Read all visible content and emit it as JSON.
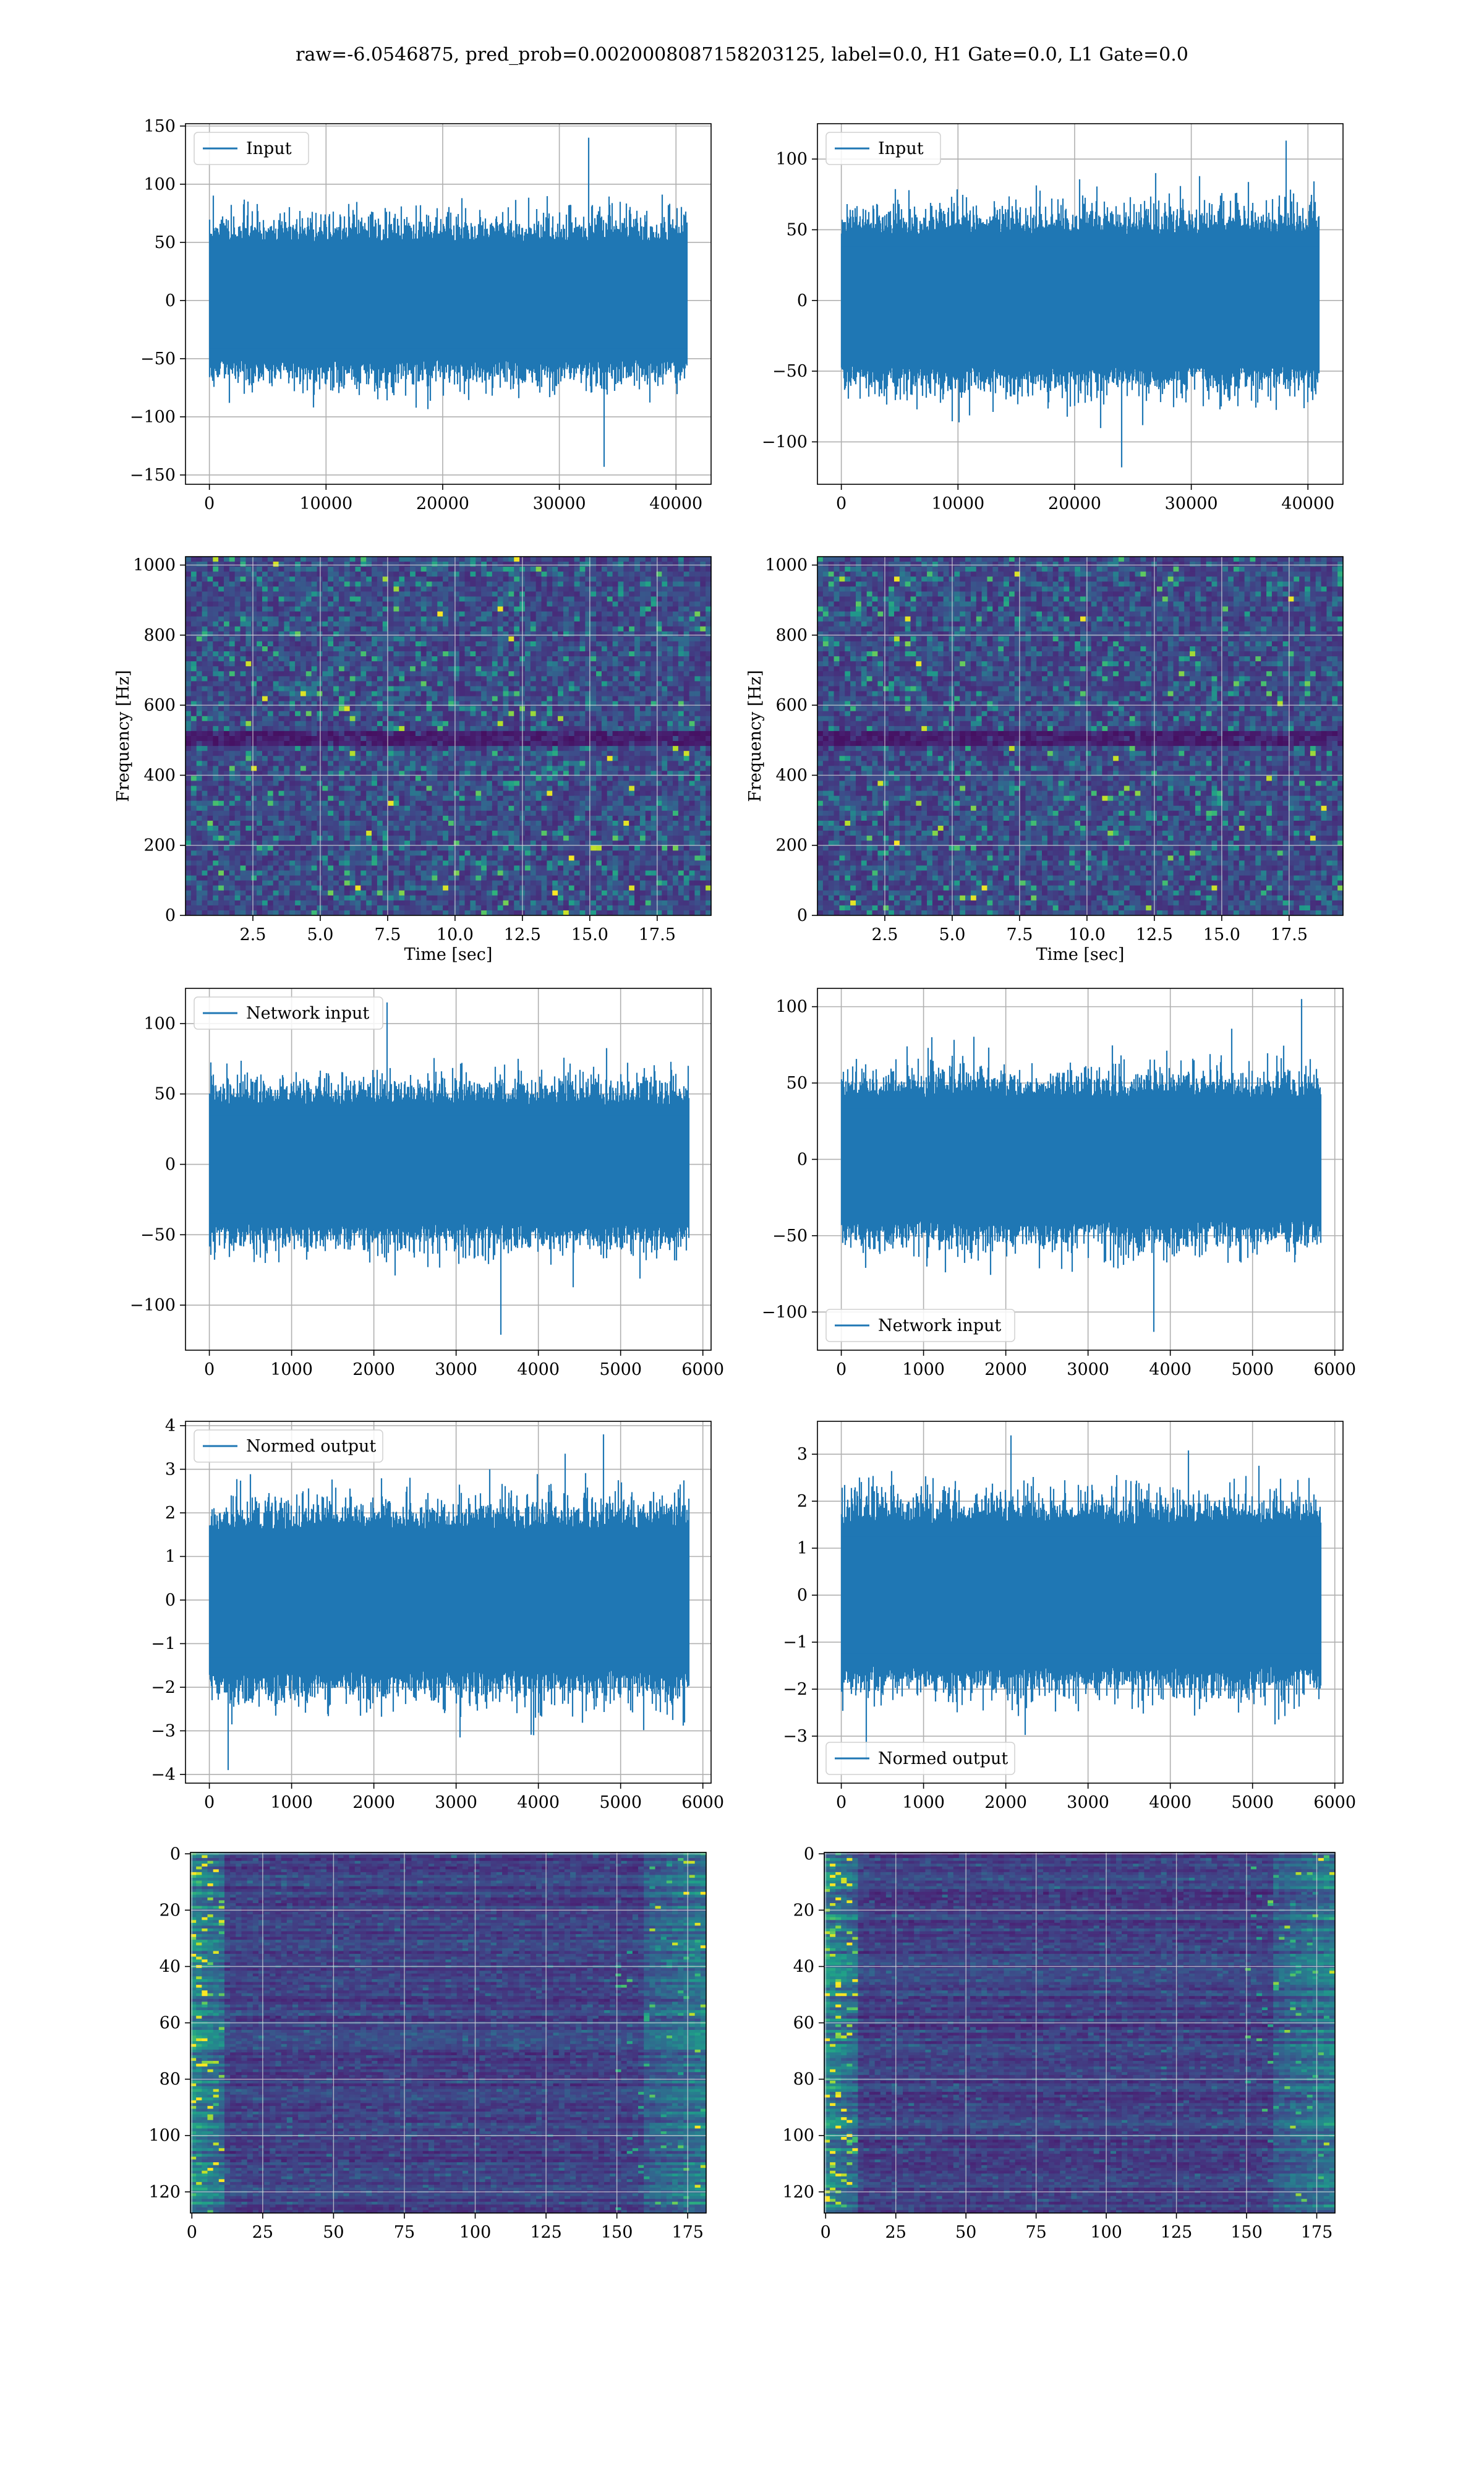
{
  "figure": {
    "suptitle": "raw=-6.0546875, pred_prob=0.0020008087158203125, label=0.0, H1 Gate=0.0, L1 Gate=0.0"
  },
  "colors": {
    "line": "#1f77b4",
    "grid": "#b0b0b0",
    "viridis": [
      "#440154",
      "#482878",
      "#3e4a89",
      "#31688e",
      "#26828e",
      "#1f9e89",
      "#35b779",
      "#6ece58",
      "#b5de2b",
      "#fde725"
    ]
  },
  "chart_data": [
    {
      "id": "h1-input",
      "type": "line",
      "series": [
        {
          "name": "Input"
        }
      ],
      "legend": "upper left",
      "grid": true,
      "xlim": [
        -2048,
        43008
      ],
      "ylim": [
        -158,
        152
      ],
      "xticks": [
        0,
        10000,
        20000,
        30000,
        40000
      ],
      "yticks": [
        -150,
        -100,
        -50,
        0,
        50,
        100,
        150
      ],
      "n_points": 40960,
      "envelope": {
        "typical_amplitude": 60,
        "max_peak": 140,
        "min_peak": -143
      }
    },
    {
      "id": "l1-input",
      "type": "line",
      "series": [
        {
          "name": "Input"
        }
      ],
      "legend": "upper left",
      "grid": true,
      "xlim": [
        -2048,
        43008
      ],
      "ylim": [
        -130,
        125
      ],
      "xticks": [
        0,
        10000,
        20000,
        30000,
        40000
      ],
      "yticks": [
        -100,
        -50,
        0,
        50,
        100
      ],
      "n_points": 40960,
      "envelope": {
        "typical_amplitude": 55,
        "max_peak": 113,
        "min_peak": -118
      }
    },
    {
      "id": "h1-spectrogram",
      "type": "heatmap",
      "xlabel": "Time [sec]",
      "ylabel": "Frequency [Hz]",
      "grid": true,
      "xlim": [
        0,
        19.5
      ],
      "ylim": [
        0,
        1024
      ],
      "xticks": [
        2.5,
        5.0,
        7.5,
        10.0,
        12.5,
        15.0,
        17.5
      ],
      "yticks": [
        0,
        200,
        400,
        600,
        800,
        1000
      ],
      "colormap": "viridis",
      "features": {
        "dark_band_hz": [
          490,
          520
        ]
      }
    },
    {
      "id": "l1-spectrogram",
      "type": "heatmap",
      "xlabel": "Time [sec]",
      "ylabel": "Frequency [Hz]",
      "grid": true,
      "xlim": [
        0,
        19.5
      ],
      "ylim": [
        0,
        1024
      ],
      "xticks": [
        2.5,
        5.0,
        7.5,
        10.0,
        12.5,
        15.0,
        17.5
      ],
      "yticks": [
        0,
        200,
        400,
        600,
        800,
        1000
      ],
      "colormap": "viridis",
      "features": {
        "dark_band_hz": [
          490,
          520
        ]
      }
    },
    {
      "id": "h1-network-input",
      "type": "line",
      "series": [
        {
          "name": "Network input"
        }
      ],
      "legend": "upper left",
      "grid": true,
      "xlim": [
        -290,
        6100
      ],
      "ylim": [
        -132,
        125
      ],
      "xticks": [
        0,
        1000,
        2000,
        3000,
        4000,
        5000,
        6000
      ],
      "yticks": [
        -100,
        -50,
        0,
        50,
        100
      ],
      "n_points": 5832,
      "envelope": {
        "typical_amplitude": 50,
        "max_peak": 115,
        "min_peak": -121
      }
    },
    {
      "id": "l1-network-input",
      "type": "line",
      "series": [
        {
          "name": "Network input"
        }
      ],
      "legend": "lower left",
      "grid": true,
      "xlim": [
        -290,
        6100
      ],
      "ylim": [
        -125,
        112
      ],
      "xticks": [
        0,
        1000,
        2000,
        3000,
        4000,
        5000,
        6000
      ],
      "yticks": [
        -100,
        -50,
        0,
        50,
        100
      ],
      "n_points": 5832,
      "envelope": {
        "typical_amplitude": 48,
        "max_peak": 105,
        "min_peak": -113
      }
    },
    {
      "id": "h1-normed-output",
      "type": "line",
      "series": [
        {
          "name": "Normed output"
        }
      ],
      "legend": "upper left",
      "grid": true,
      "xlim": [
        -290,
        6100
      ],
      "ylim": [
        -4.2,
        4.1
      ],
      "xticks": [
        0,
        1000,
        2000,
        3000,
        4000,
        5000,
        6000
      ],
      "yticks": [
        -4,
        -3,
        -2,
        -1,
        0,
        1,
        2,
        3,
        4
      ],
      "n_points": 5832,
      "envelope": {
        "typical_amplitude": 1.9,
        "max_peak": 3.8,
        "min_peak": -3.9
      }
    },
    {
      "id": "l1-normed-output",
      "type": "line",
      "series": [
        {
          "name": "Normed output"
        }
      ],
      "legend": "lower left",
      "grid": true,
      "xlim": [
        -290,
        6100
      ],
      "ylim": [
        -4.0,
        3.7
      ],
      "xticks": [
        0,
        1000,
        2000,
        3000,
        4000,
        5000,
        6000
      ],
      "yticks": [
        -3,
        -2,
        -1,
        0,
        1,
        2,
        3
      ],
      "n_points": 5832,
      "envelope": {
        "typical_amplitude": 1.8,
        "max_peak": 3.4,
        "min_peak": -3.5
      }
    },
    {
      "id": "h1-feature-map",
      "type": "heatmap",
      "grid": true,
      "xlim": [
        -0.5,
        181.5
      ],
      "ylim": [
        127.5,
        -0.5
      ],
      "xticks": [
        0,
        25,
        50,
        75,
        100,
        125,
        150,
        175
      ],
      "yticks": [
        0,
        20,
        40,
        60,
        80,
        100,
        120
      ],
      "colormap": "viridis",
      "shape": [
        128,
        182
      ]
    },
    {
      "id": "l1-feature-map",
      "type": "heatmap",
      "grid": true,
      "xlim": [
        -0.5,
        181.5
      ],
      "ylim": [
        127.5,
        -0.5
      ],
      "xticks": [
        0,
        25,
        50,
        75,
        100,
        125,
        150,
        175
      ],
      "yticks": [
        0,
        20,
        40,
        60,
        80,
        100,
        120
      ],
      "colormap": "viridis",
      "shape": [
        128,
        182
      ]
    }
  ]
}
